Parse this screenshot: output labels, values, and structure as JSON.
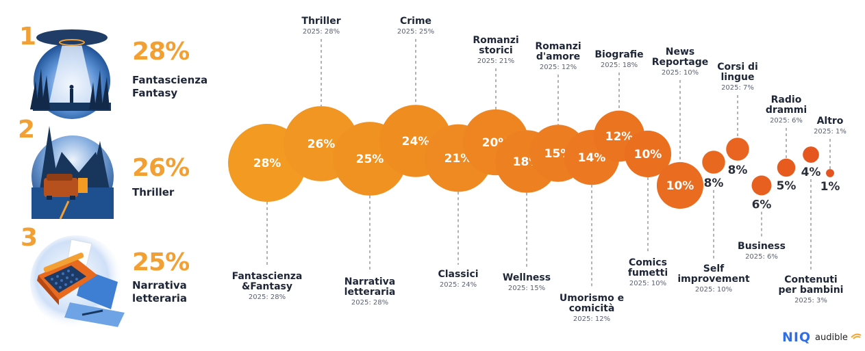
{
  "top3": [
    {
      "rank": "1",
      "percent": "28%",
      "label_lines": [
        "Fantascienza",
        "Fantasy"
      ],
      "illustration": "ufo-cornfield-illustration"
    },
    {
      "rank": "2",
      "percent": "26%",
      "label_lines": [
        "Thriller"
      ],
      "illustration": "car-forest-night-illustration"
    },
    {
      "rank": "3",
      "percent": "25%",
      "label_lines": [
        "Narrativa",
        "letteraria"
      ],
      "illustration": "typewriter-illustration"
    }
  ],
  "colors": {
    "accent_orange": "#f2a033",
    "bubble_start": "#f29a22",
    "bubble_end": "#e5531f",
    "text_dark": "#1d2537",
    "text_sub": "#5a6070",
    "niq_blue": "#2f6ee6",
    "audible_orange": "#f7a531"
  },
  "chart_data": {
    "type": "bubble",
    "title": "",
    "unit": "%",
    "comparison_label_prefix": "2025:",
    "categories": [
      "Fantascienza &Fantasy",
      "Thriller",
      "Narrativa letteraria",
      "Crime",
      "Classici",
      "Romanzi storici",
      "Wellness",
      "Romanzi d'amore",
      "Umorismo e comicità",
      "Biografie",
      "Comics fumetti",
      "News Reportage",
      "Self improvement",
      "Corsi di lingue",
      "Business",
      "Radio drammi",
      "Contenuti per bambini",
      "Altro"
    ],
    "series": [
      {
        "name": "current",
        "values": [
          28,
          26,
          25,
          24,
          21,
          20,
          18,
          15,
          14,
          12,
          10,
          10,
          8,
          8,
          6,
          5,
          4,
          1
        ]
      },
      {
        "name": "2025",
        "values": [
          28,
          28,
          28,
          25,
          24,
          21,
          15,
          12,
          12,
          18,
          10,
          10,
          10,
          7,
          6,
          6,
          3,
          1
        ]
      }
    ],
    "items": [
      {
        "label_lines": [
          "Fantascienza",
          "&Fantasy"
        ],
        "value_label": "28%",
        "sub": "2025: 28%",
        "label_pos": "below"
      },
      {
        "label_lines": [
          "Thriller"
        ],
        "value_label": "26%",
        "sub": "2025: 28%",
        "label_pos": "above"
      },
      {
        "label_lines": [
          "Narrativa",
          "letteraria"
        ],
        "value_label": "25%",
        "sub": "2025: 28%",
        "label_pos": "below"
      },
      {
        "label_lines": [
          "Crime"
        ],
        "value_label": "24%",
        "sub": "2025: 25%",
        "label_pos": "above"
      },
      {
        "label_lines": [
          "Classici"
        ],
        "value_label": "21%",
        "sub": "2025: 24%",
        "label_pos": "below"
      },
      {
        "label_lines": [
          "Romanzi",
          "storici"
        ],
        "value_label": "20%",
        "sub": "2025: 21%",
        "label_pos": "above"
      },
      {
        "label_lines": [
          "Wellness"
        ],
        "value_label": "18%",
        "sub": "2025: 15%",
        "label_pos": "below"
      },
      {
        "label_lines": [
          "Romanzi",
          "d'amore"
        ],
        "value_label": "15%",
        "sub": "2025: 12%",
        "label_pos": "above"
      },
      {
        "label_lines": [
          "Umorismo e",
          "comicità"
        ],
        "value_label": "14%",
        "sub": "2025: 12%",
        "label_pos": "below"
      },
      {
        "label_lines": [
          "Biografie"
        ],
        "value_label": "12%",
        "sub": "2025: 18%",
        "label_pos": "above"
      },
      {
        "label_lines": [
          "Comics",
          "fumetti"
        ],
        "value_label": "10%",
        "sub": "2025: 10%",
        "label_pos": "below"
      },
      {
        "label_lines": [
          "News",
          "Reportage"
        ],
        "value_label": "10%",
        "sub": "2025: 10%",
        "label_pos": "above"
      },
      {
        "label_lines": [
          "Self",
          "improvement"
        ],
        "value_label": "8%",
        "sub": "2025: 10%",
        "label_pos": "below"
      },
      {
        "label_lines": [
          "Corsi di",
          "lingue"
        ],
        "value_label": "8%",
        "sub": "2025: 7%",
        "label_pos": "above"
      },
      {
        "label_lines": [
          "Business"
        ],
        "value_label": "6%",
        "sub": "2025: 6%",
        "label_pos": "below"
      },
      {
        "label_lines": [
          "Radio",
          "drammi"
        ],
        "value_label": "5%",
        "sub": "2025: 6%",
        "label_pos": "above"
      },
      {
        "label_lines": [
          "Contenuti",
          "per bambini"
        ],
        "value_label": "4%",
        "sub": "2025: 3%",
        "label_pos": "below"
      },
      {
        "label_lines": [
          "Altro"
        ],
        "value_label": "1%",
        "sub": "2025: 1%",
        "label_pos": "above"
      }
    ]
  },
  "footer": {
    "logo_niq": "NIQ",
    "logo_audible": "audible"
  }
}
